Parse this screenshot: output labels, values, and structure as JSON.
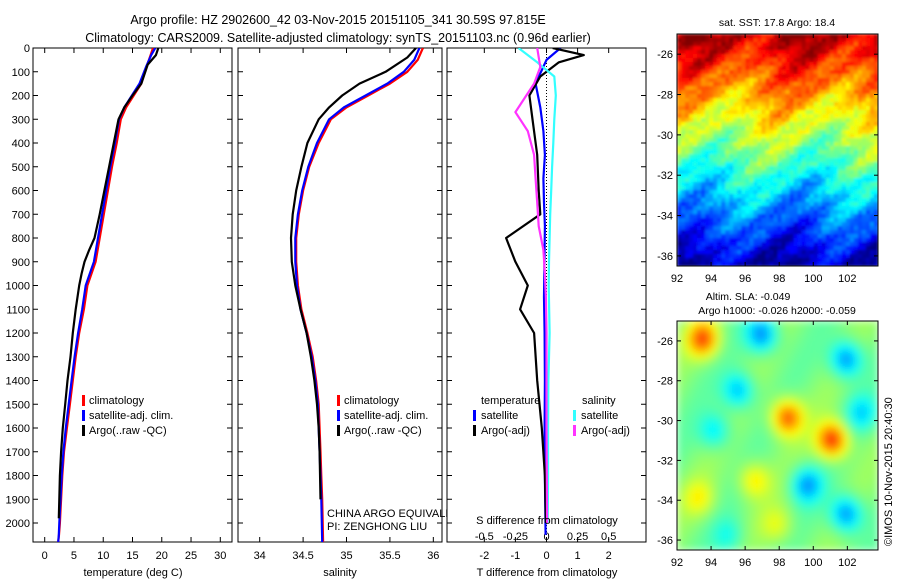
{
  "header": {
    "line1": "Argo profile: HZ 2902600_42 03-Nov-2015 20151105_341 30.59S 97.815E",
    "line2": "Climatology: CARS2009. Satellite-adjusted climatology: synTS_20151103.nc (0.96d earlier)"
  },
  "footer": {
    "credit": "©IMOS 10-Nov-2015 20:40:30",
    "project": "CHINA ARGO EQUIVALENT",
    "pi": "PI: ZENGHONG LIU"
  },
  "colors": {
    "climatology": "#ff0000",
    "satellite": "#0000ff",
    "argo": "#000000",
    "sal_satellite": "#33ffff",
    "sal_argo": "#ff33ff"
  },
  "chart_data": [
    {
      "id": "temperature",
      "type": "line",
      "xlabel": "temperature (deg C)",
      "ylabel": "",
      "xlim": [
        -2,
        32
      ],
      "ylim": [
        2080,
        0
      ],
      "xticks": [
        0,
        5,
        10,
        15,
        20,
        25,
        30
      ],
      "yticks": [
        0,
        100,
        200,
        300,
        400,
        500,
        600,
        700,
        800,
        900,
        1000,
        1100,
        1200,
        1300,
        1400,
        1500,
        1600,
        1700,
        1800,
        1900,
        2000
      ],
      "legend": [
        "climatology",
        "satellite-adj. clim.",
        "Argo(..raw -QC)"
      ],
      "series": [
        {
          "name": "climatology",
          "color": "#ff0000",
          "x": [
            18.5,
            18.1,
            17.4,
            16.5,
            15.2,
            13.9,
            13.0,
            12.3,
            11.5,
            10.8,
            10.1,
            9.4,
            8.7,
            8.0,
            7.3,
            6.7,
            5.9,
            5.3,
            4.8,
            4.3,
            3.8,
            3.3,
            3.0,
            2.8,
            2.6,
            2.45,
            2.3
          ],
          "y": [
            0,
            30,
            80,
            150,
            200,
            250,
            300,
            400,
            500,
            600,
            700,
            800,
            900,
            950,
            1000,
            1100,
            1200,
            1300,
            1400,
            1500,
            1600,
            1700,
            1800,
            1900,
            2000,
            2050,
            2080
          ]
        },
        {
          "name": "satellite-adj. clim.",
          "color": "#0000ff",
          "x": [
            18.9,
            18.2,
            17.3,
            16.2,
            14.9,
            13.6,
            12.7,
            12.0,
            11.2,
            10.5,
            9.8,
            9.1,
            8.4,
            7.7,
            7.0,
            6.4,
            5.7,
            5.1,
            4.6,
            4.1,
            3.6,
            3.2,
            2.9,
            2.7,
            2.5,
            2.4,
            2.3
          ],
          "y": [
            0,
            30,
            80,
            150,
            200,
            250,
            300,
            400,
            500,
            600,
            700,
            800,
            900,
            950,
            1000,
            1100,
            1200,
            1300,
            1400,
            1500,
            1600,
            1700,
            1800,
            1900,
            2000,
            2050,
            2080
          ]
        },
        {
          "name": "Argo(..raw -QC)",
          "color": "#000000",
          "x": [
            19.4,
            19.0,
            17.6,
            16.5,
            15.0,
            13.6,
            12.6,
            11.8,
            11.0,
            10.2,
            9.4,
            8.5,
            7.6,
            6.8,
            6.3,
            5.9,
            5.3,
            4.8,
            4.4,
            3.9,
            3.5,
            3.1,
            2.8,
            2.6,
            2.5,
            2.4
          ],
          "y": [
            0,
            30,
            70,
            150,
            200,
            250,
            300,
            400,
            500,
            600,
            700,
            800,
            850,
            900,
            950,
            1000,
            1100,
            1200,
            1300,
            1400,
            1500,
            1600,
            1700,
            1800,
            1900,
            1980
          ]
        }
      ]
    },
    {
      "id": "salinity",
      "type": "line",
      "xlabel": "salinity",
      "ylabel": "",
      "xlim": [
        33.75,
        36.1
      ],
      "ylim": [
        2080,
        0
      ],
      "xticks": [
        34,
        34.5,
        35,
        35.5,
        36
      ],
      "xticklabels": [
        "34",
        "34.5",
        "35",
        "35.5",
        "36"
      ],
      "legend": [
        "climatology",
        "satellite-adj. clim.",
        "Argo(..raw -QC)"
      ],
      "series": [
        {
          "name": "climatology",
          "color": "#ff0000",
          "x": [
            35.88,
            35.82,
            35.7,
            35.5,
            35.25,
            35.0,
            34.82,
            34.68,
            34.57,
            34.5,
            34.45,
            34.42,
            34.42,
            34.44,
            34.48,
            34.55,
            34.61,
            34.65,
            34.68,
            34.69,
            34.7,
            34.71,
            34.72,
            34.73
          ],
          "y": [
            0,
            50,
            100,
            150,
            200,
            250,
            300,
            400,
            500,
            600,
            700,
            800,
            900,
            1000,
            1100,
            1200,
            1300,
            1400,
            1500,
            1600,
            1700,
            1800,
            1900,
            2080
          ]
        },
        {
          "name": "satellite-adj. clim.",
          "color": "#0000ff",
          "x": [
            35.84,
            35.78,
            35.66,
            35.47,
            35.22,
            34.97,
            34.8,
            34.66,
            34.56,
            34.49,
            34.44,
            34.41,
            34.41,
            34.43,
            34.47,
            34.54,
            34.6,
            34.64,
            34.67,
            34.68,
            34.69,
            34.7,
            34.71,
            34.72
          ],
          "y": [
            0,
            50,
            100,
            150,
            200,
            250,
            300,
            400,
            500,
            600,
            700,
            800,
            900,
            1000,
            1100,
            1200,
            1300,
            1400,
            1500,
            1600,
            1700,
            1800,
            1900,
            2080
          ]
        },
        {
          "name": "Argo(..raw -QC)",
          "color": "#000000",
          "x": [
            35.8,
            35.7,
            35.45,
            35.15,
            34.95,
            34.8,
            34.68,
            34.55,
            34.48,
            34.42,
            34.38,
            34.36,
            34.37,
            34.41,
            34.47,
            34.54,
            34.59,
            34.63,
            34.66,
            34.68,
            34.69,
            34.7
          ],
          "y": [
            0,
            40,
            100,
            150,
            200,
            250,
            300,
            400,
            500,
            600,
            700,
            800,
            900,
            1000,
            1100,
            1200,
            1300,
            1400,
            1500,
            1600,
            1700,
            1900
          ]
        }
      ],
      "annotations": [
        "CHINA ARGO EQUIVALENT",
        "PI: ZENGHONG LIU"
      ]
    },
    {
      "id": "difference",
      "type": "line",
      "xlabel": "T difference from climatology",
      "top_xlabel": "S difference from climatology",
      "ylabel": "",
      "xlim": [
        -3.2,
        3.2
      ],
      "ylim": [
        2080,
        0
      ],
      "xticks": [
        -2,
        -1,
        0,
        1,
        2
      ],
      "top_xticks": [
        -0.5,
        -0.25,
        0,
        0.25,
        0.5
      ],
      "top_xticklabels": [
        "-0.5",
        "-0.25",
        "0",
        "0.25",
        "0.5"
      ],
      "legend_titles": [
        "temperature",
        "salinity"
      ],
      "legend": [
        "satellite",
        "Argo(-adj)",
        "satellite",
        "Argo(-adj)"
      ],
      "series": [
        {
          "name": "temperature satellite",
          "color": "#0000ff",
          "x": [
            0.45,
            0.0,
            -0.35,
            -0.2,
            -0.1,
            -0.05,
            -0.1,
            -0.08,
            -0.05,
            -0.06,
            -0.07,
            -0.08,
            -0.06,
            -0.05,
            -0.06,
            -0.05,
            -0.04,
            -0.03
          ],
          "y": [
            0,
            50,
            150,
            250,
            350,
            450,
            550,
            650,
            750,
            850,
            950,
            1050,
            1200,
            1400,
            1600,
            1800,
            1950,
            2050
          ]
        },
        {
          "name": "temperature Argo(-adj)",
          "color": "#000000",
          "x": [
            0.2,
            1.2,
            0.4,
            -0.2,
            -0.55,
            -0.45,
            -0.3,
            -0.25,
            -0.2,
            -1.3,
            -1.0,
            -0.6,
            -0.85,
            -0.4,
            -0.3,
            -0.15,
            -0.05,
            -0.02
          ],
          "y": [
            0,
            30,
            60,
            120,
            200,
            300,
            450,
            600,
            700,
            800,
            900,
            1000,
            1100,
            1200,
            1400,
            1600,
            1800,
            2000
          ]
        },
        {
          "name": "salinity satellite",
          "color": "#33ffff",
          "x": [
            -0.9,
            -0.3,
            0.25,
            0.3,
            0.25,
            0.22,
            0.18,
            0.15,
            0.12,
            0.1,
            0.08,
            0.07,
            0.1,
            0.06,
            0.05,
            0.05,
            0.04
          ],
          "y": [
            0,
            60,
            120,
            200,
            300,
            400,
            500,
            600,
            700,
            800,
            900,
            1000,
            1200,
            1400,
            1600,
            1800,
            2000
          ]
        },
        {
          "name": "salinity Argo(-adj)",
          "color": "#ff33ff",
          "x": [
            -0.3,
            -0.2,
            -0.4,
            -1.0,
            -0.6,
            -0.4,
            -0.35,
            -0.3,
            -0.25,
            -0.1,
            -0.05,
            -0.02,
            0.0,
            0.0,
            0.02
          ],
          "y": [
            0,
            80,
            150,
            270,
            350,
            450,
            550,
            650,
            750,
            850,
            950,
            1050,
            1200,
            1600,
            2000
          ]
        }
      ]
    },
    {
      "id": "sst_map",
      "type": "heatmap",
      "title": "sat. SST: 17.8  Argo: 18.4",
      "xlim": [
        92,
        103.8
      ],
      "ylim": [
        -36.5,
        -25
      ],
      "xticks": [
        92,
        94,
        96,
        98,
        100,
        102
      ],
      "yticks": [
        -26,
        -28,
        -30,
        -32,
        -34,
        -36
      ],
      "colormap": "jet"
    },
    {
      "id": "sla_map",
      "type": "heatmap",
      "title_line1": "Altim. SLA: -0.049",
      "title_line2": "Argo h1000: -0.026 h2000: -0.059",
      "xlim": [
        92,
        103.8
      ],
      "ylim": [
        -36.5,
        -25
      ],
      "xticks": [
        92,
        94,
        96,
        98,
        100,
        102
      ],
      "yticks": [
        -26,
        -28,
        -30,
        -32,
        -34,
        -36
      ],
      "colormap": "jet"
    }
  ]
}
